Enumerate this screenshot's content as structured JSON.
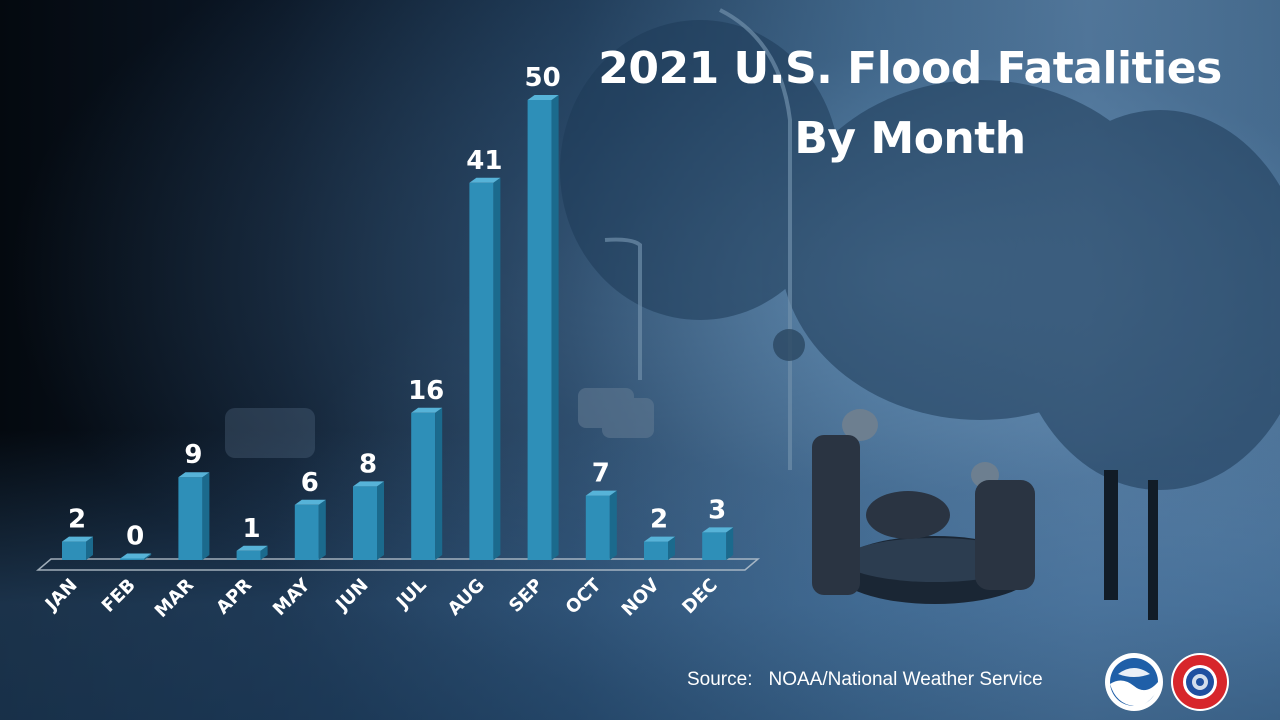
{
  "title_line1": "2021 U.S. Flood Fatalities",
  "title_line2": "By Month",
  "source_label": "Source:",
  "source_value": "NOAA/National Weather Service",
  "logos": [
    "noaa-logo",
    "nws-logo"
  ],
  "colors": {
    "bar_front": "#2e8fb8",
    "bar_side": "#1b6a8d",
    "bar_top": "#57b3d8",
    "text": "#ffffff"
  },
  "chart_data": {
    "type": "bar",
    "title": "2021 U.S. Flood Fatalities By Month",
    "categories": [
      "JAN",
      "FEB",
      "MAR",
      "APR",
      "MAY",
      "JUN",
      "JUL",
      "AUG",
      "SEP",
      "OCT",
      "NOV",
      "DEC"
    ],
    "values": [
      2,
      0,
      9,
      1,
      6,
      8,
      16,
      41,
      50,
      7,
      2,
      3
    ],
    "xlabel": "",
    "ylabel": "",
    "ylim": [
      0,
      50
    ],
    "grid": false,
    "legend": "none",
    "data_labels": true
  }
}
